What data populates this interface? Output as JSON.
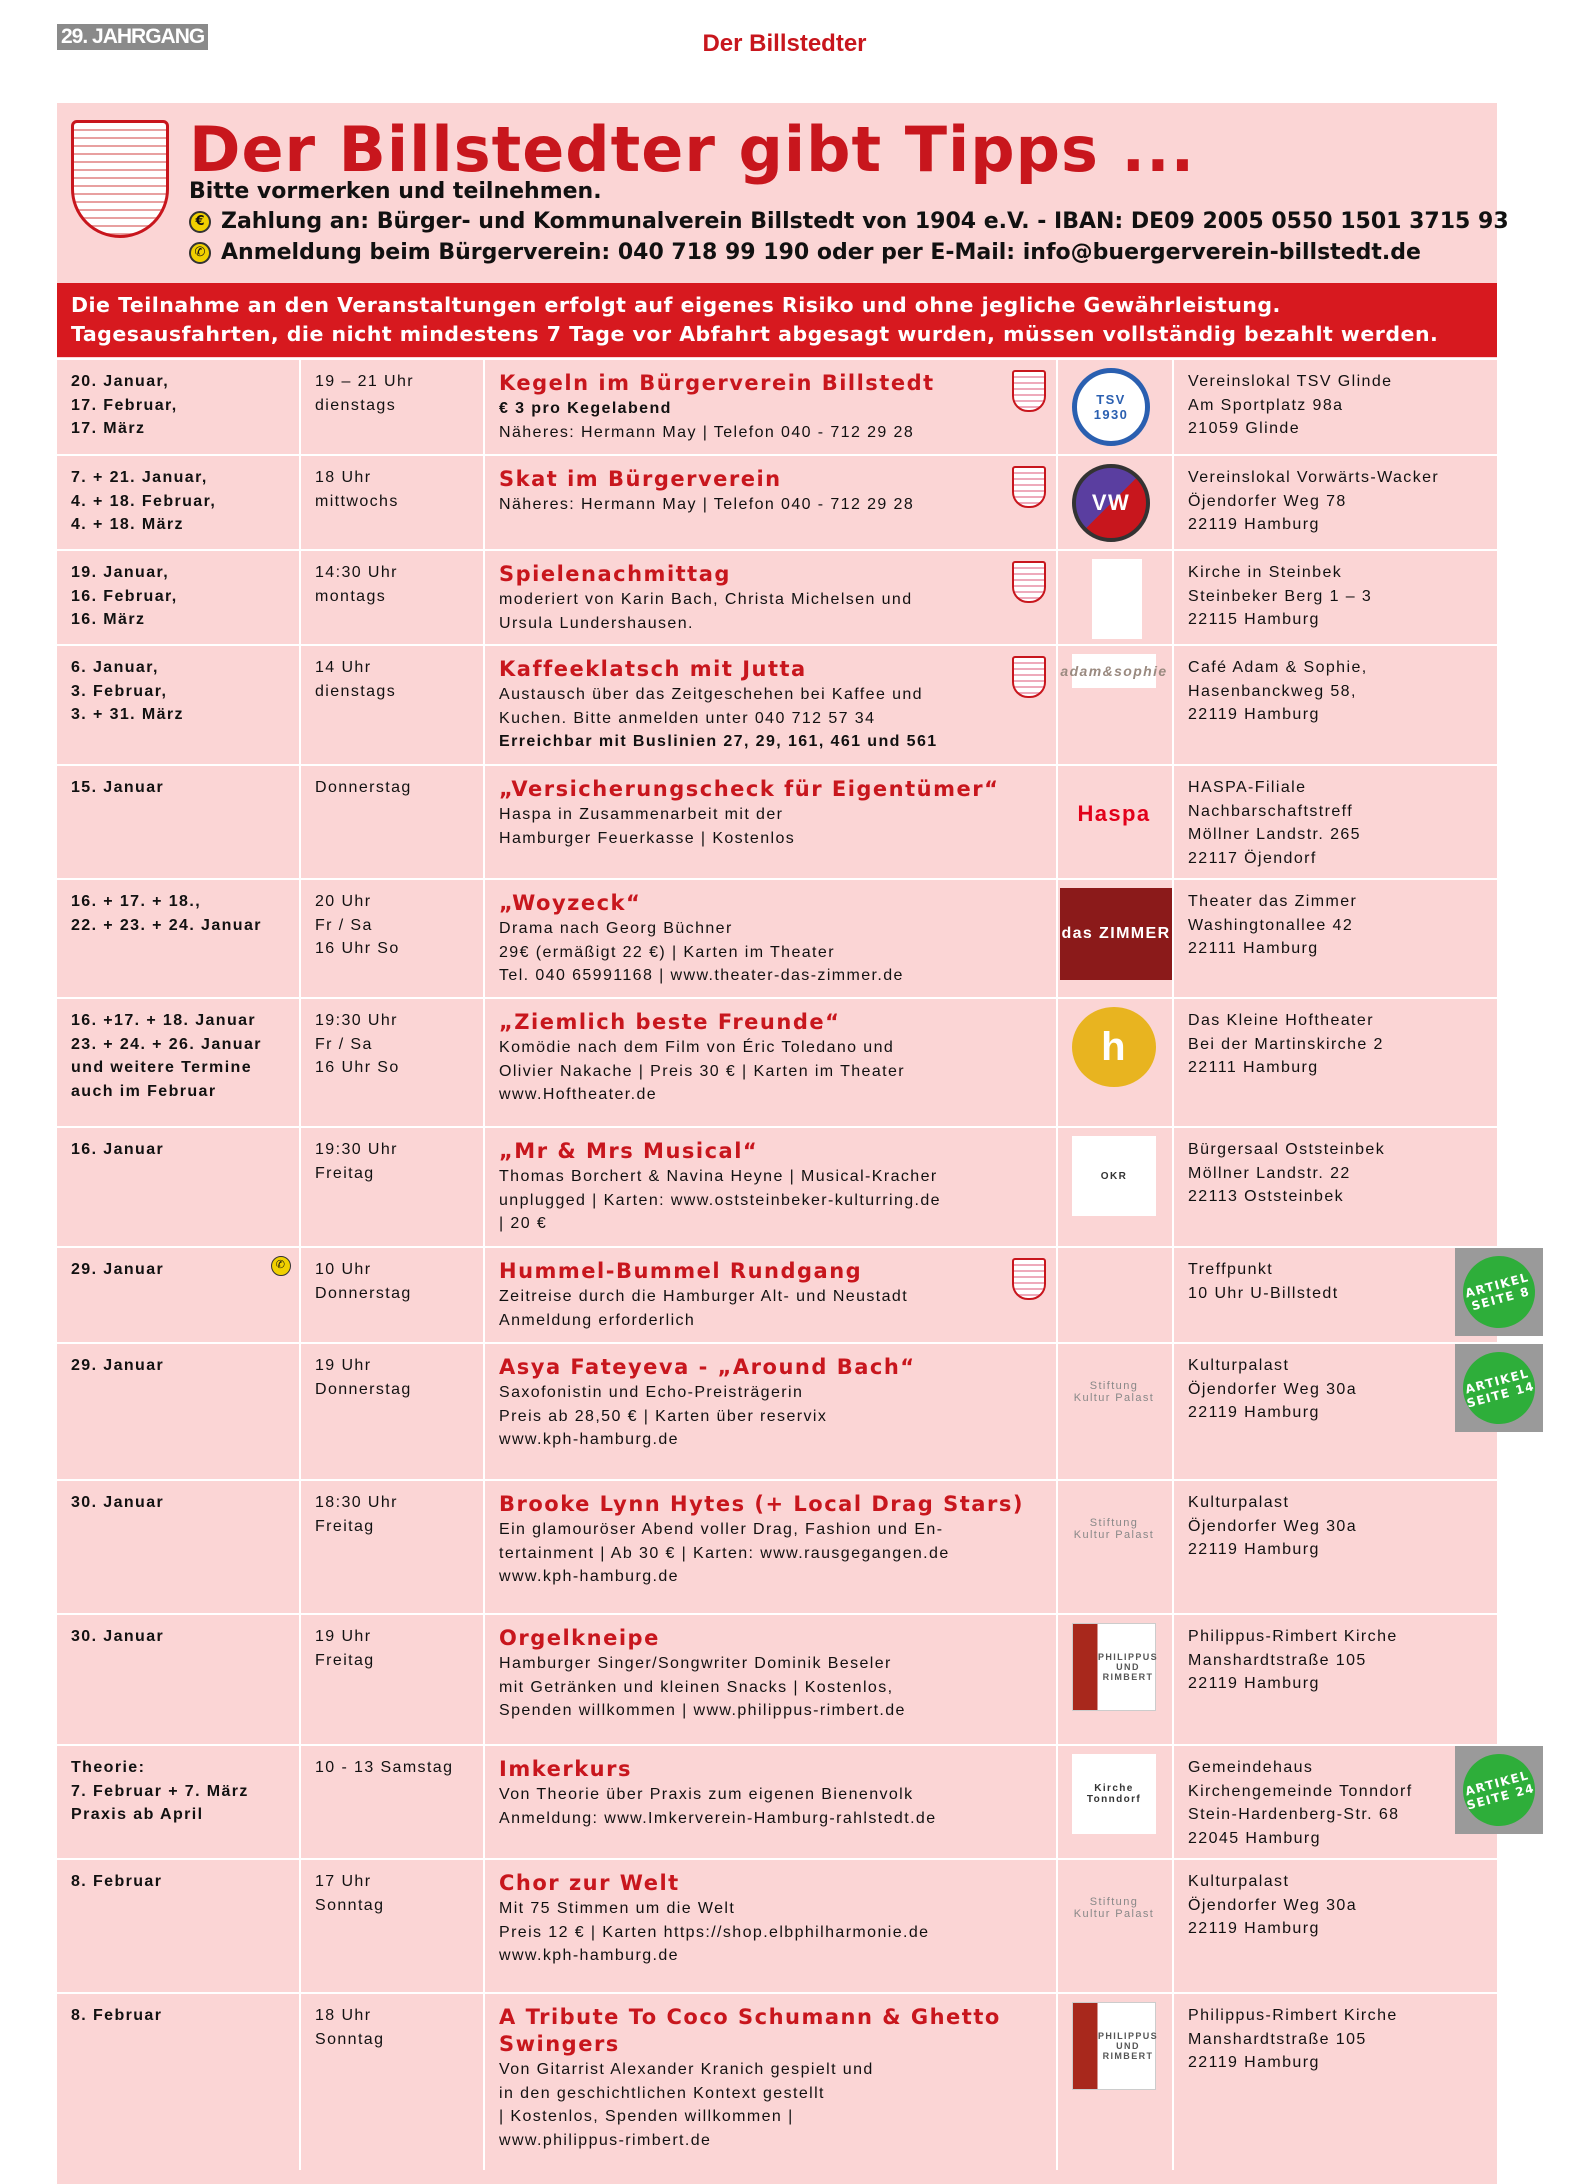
{
  "header": {
    "volume": "29. JAHRGANG",
    "masthead": "Der Billstedter"
  },
  "box": {
    "title": "Der Billstedter gibt Tipps ...",
    "subtitle": "Bitte vormerken und teilnehmen.",
    "payment": "Zahlung an: Bürger- und Kommunalverein Billstedt von 1904 e.V. - IBAN: DE09 2005 0550 1501 3715 93",
    "registration": "Anmeldung beim Bürgerverein: 040 718 99 190 oder per E-Mail: info@buergerverein-billstedt.de",
    "payment_icon": "euro-coin-icon",
    "registration_icon": "phone-icon"
  },
  "disclaimer": [
    "Die Teilnahme an den Veranstaltungen erfolgt auf eigenes Risiko und ohne jegliche Gewährleistung.",
    "Tagesausfahrten, die nicht mindestens 7 Tage vor Abfahrt abgesagt wurden, müssen vollständig bezahlt werden."
  ],
  "colors": {
    "accent": "#c8161d",
    "background": "#fbd5d5",
    "badge": "#2eae3a"
  },
  "events": [
    {
      "date": [
        "20. Januar,",
        "17. Februar,",
        "17. März"
      ],
      "time": [
        "19 – 21 Uhr",
        "dienstags"
      ],
      "title": "Kegeln im Bürgerverein Billstedt",
      "details": [
        "€ 3 pro Kegelabend",
        "Näheres: Hermann May | Telefon 040 - 712 29 28"
      ],
      "boldDetail": [
        0
      ],
      "crest": true,
      "logo": "TSV 1930",
      "location": [
        "Vereinslokal TSV Glinde",
        "Am Sportplatz 98a",
        "21059 Glinde"
      ]
    },
    {
      "date": [
        "7. + 21. Januar,",
        "4. + 18. Februar,",
        "4. + 18. März"
      ],
      "time": [
        "18 Uhr",
        "mittwochs"
      ],
      "title": "Skat im Bürgerverein",
      "details": [
        "Näheres: Hermann May | Telefon 040 - 712 29 28"
      ],
      "crest": true,
      "logo": "VW",
      "location": [
        "Vereinslokal Vorwärts-Wacker",
        "Öjendorfer Weg 78",
        "22119 Hamburg"
      ]
    },
    {
      "date": [
        "19. Januar,",
        "16. Februar,",
        "16. März"
      ],
      "time": [
        "14:30 Uhr",
        "montags"
      ],
      "title": "Spielenachmittag",
      "details": [
        "moderiert von Karin Bach, Christa Michelsen und",
        "Ursula Lundershausen."
      ],
      "crest": true,
      "logo": "",
      "location": [
        "Kirche in Steinbek",
        "Steinbeker Berg 1 – 3",
        "22115 Hamburg"
      ]
    },
    {
      "date": [
        "6. Januar,",
        "3. Februar,",
        "3. + 31. März"
      ],
      "time": [
        "14 Uhr",
        "dienstags"
      ],
      "title": "Kaffeeklatsch mit Jutta",
      "details": [
        "Austausch über das Zeitgeschehen bei Kaffee und",
        "Kuchen. Bitte anmelden unter 040 712 57 34",
        "Erreichbar mit Buslinien 27, 29, 161, 461 und 561"
      ],
      "boldDetail": [
        2
      ],
      "crest": true,
      "logo": "adam&sophie",
      "location": [
        "Café Adam & Sophie,",
        "Hasenbanckweg 58,",
        "22119 Hamburg"
      ]
    },
    {
      "date": [
        "15. Januar"
      ],
      "time": [
        "Donnerstag"
      ],
      "title": "„Versicherungscheck für Eigentümer“",
      "details": [
        "Haspa in Zusammenarbeit mit der",
        "Hamburger Feuerkasse | Kostenlos"
      ],
      "logo": "Haspa",
      "location": [
        "HASPA-Filiale",
        "Nachbarschaftstreff",
        "Möllner Landstr. 265",
        "22117 Öjendorf"
      ]
    },
    {
      "date": [
        "16. + 17. + 18.,",
        "22. + 23. + 24. Januar"
      ],
      "time": [
        "20 Uhr",
        "Fr / Sa",
        "16 Uhr So"
      ],
      "title": "„Woyzeck“",
      "details": [
        "Drama nach Georg Büchner",
        "29€ (ermäßigt 22 €) | Karten im Theater",
        "Tel. 040 65991168 | www.theater-das-zimmer.de"
      ],
      "logo": "das ZIMMER",
      "location": [
        "Theater das Zimmer",
        "Washingtonallee 42",
        "22111 Hamburg"
      ]
    },
    {
      "date": [
        "16. +17. + 18. Januar",
        "23. + 24. + 26. Januar",
        "und weitere Termine",
        "auch im Februar"
      ],
      "time": [
        "19:30 Uhr",
        "Fr / Sa",
        "16 Uhr So"
      ],
      "title": "„Ziemlich beste Freunde“",
      "details": [
        "Komödie nach dem Film von Éric Toledano und",
        "Olivier Nakache | Preis 30 € | Karten im Theater",
        "www.Hoftheater.de"
      ],
      "logo": "h",
      "location": [
        "Das Kleine Hoftheater",
        "Bei der Martinskirche 2",
        "22111 Hamburg"
      ]
    },
    {
      "date": [
        "16. Januar"
      ],
      "time": [
        "19:30 Uhr",
        "Freitag"
      ],
      "title": "„Mr & Mrs Musical“",
      "details": [
        "Thomas Borchert & Navina Heyne | Musical-Kracher",
        "unplugged | Karten: www.oststeinbeker-kulturring.de",
        "| 20 €"
      ],
      "logo": "OKR",
      "location": [
        "Bürgersaal Oststeinbek",
        "Möllner Landstr. 22",
        "22113 Oststeinbek"
      ]
    },
    {
      "date": [
        "29. Januar"
      ],
      "phone": true,
      "time": [
        "10 Uhr",
        "Donnerstag"
      ],
      "title": "Hummel-Bummel Rundgang",
      "details": [
        "Zeitreise durch die Hamburger Alt- und Neustadt",
        "Anmeldung erforderlich"
      ],
      "crest": true,
      "logo": "",
      "location": [
        "Treffpunkt",
        "10 Uhr U-Billstedt"
      ],
      "badge": [
        "ARTIKEL",
        "SEITE 8"
      ]
    },
    {
      "date": [
        "29. Januar"
      ],
      "time": [
        "19 Uhr",
        "Donnerstag"
      ],
      "title": "Asya Fateyeva - „Around Bach“",
      "details": [
        "Saxofonistin und Echo-Preisträgerin",
        "Preis ab 28,50 € | Karten über reservix",
        "www.kph-hamburg.de"
      ],
      "logo": "Stiftung Kultur Palast",
      "location": [
        "Kulturpalast",
        "Öjendorfer Weg 30a",
        "22119 Hamburg"
      ],
      "badge": [
        "ARTIKEL",
        "SEITE 14"
      ]
    },
    {
      "date": [
        "30. Januar"
      ],
      "time": [
        "18:30 Uhr",
        "Freitag"
      ],
      "title": "Brooke Lynn Hytes (+ Local Drag Stars)",
      "details": [
        "Ein glamouröser Abend voller Drag, Fashion und En-",
        "tertainment | Ab 30 € | Karten: www.rausgegangen.de",
        "www.kph-hamburg.de"
      ],
      "logo": "Stiftung Kultur Palast",
      "location": [
        "Kulturpalast",
        "Öjendorfer Weg 30a",
        "22119 Hamburg"
      ]
    },
    {
      "date": [
        "30. Januar"
      ],
      "time": [
        "19 Uhr",
        "Freitag"
      ],
      "title": "Orgelkneipe",
      "details": [
        "Hamburger Singer/Songwriter Dominik Beseler",
        "mit Getränken und kleinen Snacks | Kostenlos,",
        "Spenden willkommen | www.philippus-rimbert.de"
      ],
      "logo": "PHILIPPUS UND RIMBERT",
      "location": [
        "Philippus-Rimbert Kirche",
        "Manshardtstraße 105",
        "22119 Hamburg"
      ]
    },
    {
      "date": [
        "Theorie:",
        "7. Februar + 7. März",
        "Praxis ab April"
      ],
      "time": [
        "10 - 13 Samstag"
      ],
      "title": "Imkerkurs",
      "details": [
        "Von Theorie über Praxis zum eigenen Bienenvolk",
        "Anmeldung: www.Imkerverein-Hamburg-rahlstedt.de"
      ],
      "logo": "Kirche Tonndorf",
      "location": [
        "Gemeindehaus",
        "Kirchengemeinde Tonndorf",
        "Stein-Hardenberg-Str. 68",
        "22045 Hamburg"
      ],
      "badge": [
        "ARTIKEL",
        "SEITE 24"
      ]
    },
    {
      "date": [
        "8. Februar"
      ],
      "time": [
        "17 Uhr",
        "Sonntag"
      ],
      "title": "Chor zur Welt",
      "details": [
        "Mit 75 Stimmen um die Welt",
        "Preis 12 € | Karten https://shop.elbphilharmonie.de",
        "www.kph-hamburg.de"
      ],
      "logo": "Stiftung Kultur Palast",
      "location": [
        "Kulturpalast",
        "Öjendorfer Weg 30a",
        "22119 Hamburg"
      ]
    },
    {
      "date": [
        "8. Februar"
      ],
      "time": [
        "18 Uhr",
        "Sonntag"
      ],
      "title": "A Tribute To Coco Schumann & Ghetto Swingers",
      "details": [
        "Von Gitarrist Alexander Kranich gespielt und",
        "in den geschichtlichen Kontext gestellt",
        "| Kostenlos, Spenden willkommen |",
        "www.philippus-rimbert.de"
      ],
      "logo": "PHILIPPUS UND RIMBERT",
      "location": [
        "Philippus-Rimbert Kirche",
        "Manshardtstraße 105",
        "22119 Hamburg"
      ]
    }
  ]
}
